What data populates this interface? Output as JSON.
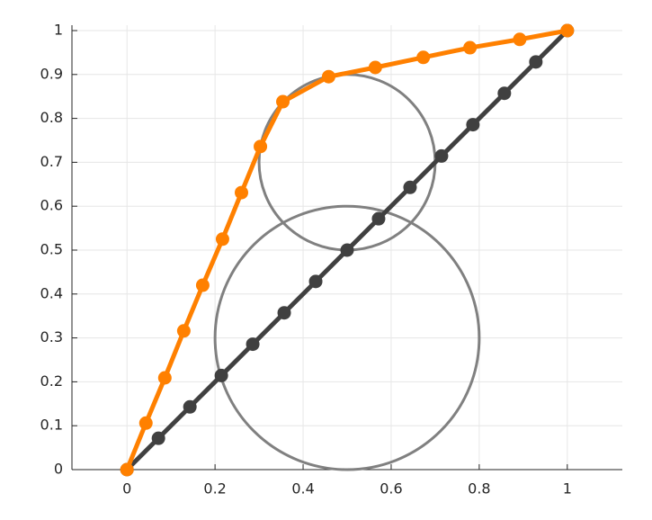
{
  "chart_data": {
    "type": "line",
    "xlim": [
      -0.125,
      1.125
    ],
    "xticks": [
      0,
      0.2,
      0.4,
      0.6,
      0.8,
      1
    ],
    "ylim": [
      0,
      1
    ],
    "yticks": [
      0,
      0.1,
      0.2,
      0.3,
      0.4,
      0.5,
      0.6,
      0.7,
      0.8,
      0.9,
      1
    ],
    "grid": true,
    "series": [
      {
        "color": "#404040",
        "x": [
          0,
          0.0714,
          0.1429,
          0.2143,
          0.2857,
          0.3571,
          0.4286,
          0.5,
          0.5714,
          0.6429,
          0.7143,
          0.7857,
          0.8571,
          0.9286,
          1
        ],
        "values": [
          0,
          0.0714,
          0.1429,
          0.2143,
          0.2857,
          0.3571,
          0.4286,
          0.5,
          0.5714,
          0.6429,
          0.7143,
          0.7857,
          0.8571,
          0.9286,
          1
        ]
      },
      {
        "color": "#ff8000",
        "x": [
          0,
          0.043,
          0.086,
          0.129,
          0.172,
          0.217,
          0.26,
          0.303,
          0.354,
          0.458,
          0.564,
          0.673,
          0.779,
          0.892,
          1
        ],
        "values": [
          0,
          0.106,
          0.209,
          0.316,
          0.42,
          0.525,
          0.631,
          0.736,
          0.838,
          0.895,
          0.916,
          0.939,
          0.961,
          0.98,
          1
        ]
      }
    ],
    "circles": [
      {
        "cx": 0.5,
        "cy": 0.3,
        "r": 0.3,
        "color": "#808080"
      },
      {
        "cx": 0.5,
        "cy": 0.7,
        "r": 0.2,
        "color": "#808080"
      }
    ]
  }
}
